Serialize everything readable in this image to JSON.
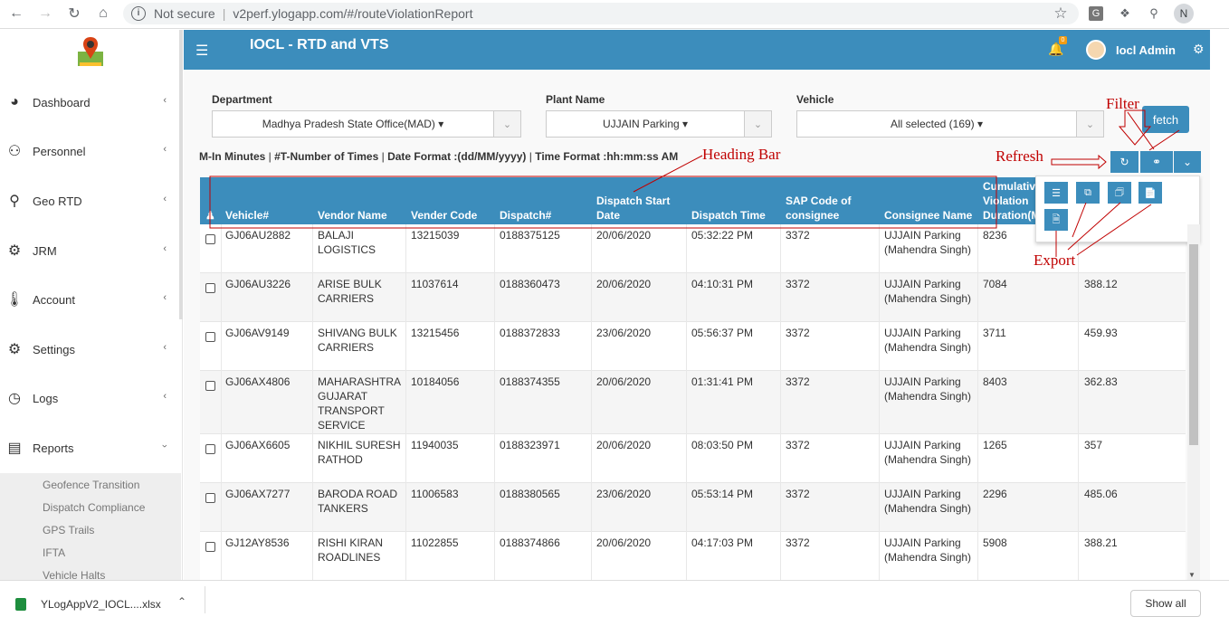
{
  "browser": {
    "security": "Not secure",
    "url": "v2perf.ylogapp.com/#/routeViolationReport",
    "profile_initial": "N"
  },
  "header": {
    "title": "IOCL - RTD and VTS",
    "notification_count": "0",
    "user_name": "Iocl Admin"
  },
  "sidebar": {
    "items": [
      {
        "label": "Dashboard",
        "icon": "dashboard-icon"
      },
      {
        "label": "Personnel",
        "icon": "users-icon"
      },
      {
        "label": "Geo RTD",
        "icon": "map-marker-icon"
      },
      {
        "label": "JRM",
        "icon": "gear-icon"
      },
      {
        "label": "Account",
        "icon": "thermometer-icon"
      },
      {
        "label": "Settings",
        "icon": "settings-icon"
      },
      {
        "label": "Logs",
        "icon": "clock-icon"
      },
      {
        "label": "Reports",
        "icon": "book-icon"
      }
    ],
    "sub_items": [
      "Geofence Transition",
      "Dispatch Compliance",
      "GPS Trails",
      "IFTA",
      "Vehicle Halts"
    ]
  },
  "filters": {
    "department_label": "Department",
    "department_value": "Madhya Pradesh State Office(MAD)",
    "plant_label": "Plant Name",
    "plant_value": "UJJAIN Parking",
    "vehicle_label": "Vehicle",
    "vehicle_value": "All selected (169)",
    "fetch_label": "fetch"
  },
  "legend": {
    "m": "M-In Minutes",
    "t": "#T-Number of Times",
    "date": "Date Format :(dd/MM/yyyy)",
    "time": "Time Format :hh:mm:ss AM"
  },
  "annotations": {
    "filter": "Filter",
    "refresh": "Refresh",
    "heading_bar": "Heading Bar",
    "export": "Export"
  },
  "table": {
    "columns": [
      "Vehicle#",
      "Vendor Name",
      "Vender Code",
      "Dispatch#",
      "Dispatch Start Date",
      "Dispatch Time",
      "SAP Code of consignee",
      "Consignee Name",
      "Cumulative Violation Duration(M)"
    ],
    "rows": [
      {
        "vehicle": "GJ06AU2882",
        "vendor": "BALAJI LOGISTICS",
        "code": "13215039",
        "dispatch": "0188375125",
        "date": "20/06/2020",
        "time": "05:32:22 PM",
        "sap": "3372",
        "consignee": "UJJAIN Parking (Mahendra Singh)",
        "cum": "8236",
        "extra": ""
      },
      {
        "vehicle": "GJ06AU3226",
        "vendor": "ARISE BULK CARRIERS",
        "code": "11037614",
        "dispatch": "0188360473",
        "date": "20/06/2020",
        "time": "04:10:31 PM",
        "sap": "3372",
        "consignee": "UJJAIN Parking (Mahendra Singh)",
        "cum": "7084",
        "extra": "388.12"
      },
      {
        "vehicle": "GJ06AV9149",
        "vendor": "SHIVANG BULK CARRIERS",
        "code": "13215456",
        "dispatch": "0188372833",
        "date": "23/06/2020",
        "time": "05:56:37 PM",
        "sap": "3372",
        "consignee": "UJJAIN Parking (Mahendra Singh)",
        "cum": "3711",
        "extra": "459.93"
      },
      {
        "vehicle": "GJ06AX4806",
        "vendor": "MAHARASHTRA GUJARAT TRANSPORT SERVICE",
        "code": "10184056",
        "dispatch": "0188374355",
        "date": "20/06/2020",
        "time": "01:31:41 PM",
        "sap": "3372",
        "consignee": "UJJAIN Parking (Mahendra Singh)",
        "cum": "8403",
        "extra": "362.83"
      },
      {
        "vehicle": "GJ06AX6605",
        "vendor": "NIKHIL SURESH RATHOD",
        "code": "11940035",
        "dispatch": "0188323971",
        "date": "20/06/2020",
        "time": "08:03:50 PM",
        "sap": "3372",
        "consignee": "UJJAIN Parking (Mahendra Singh)",
        "cum": "1265",
        "extra": "357"
      },
      {
        "vehicle": "GJ06AX7277",
        "vendor": "BARODA ROAD TANKERS",
        "code": "11006583",
        "dispatch": "0188380565",
        "date": "23/06/2020",
        "time": "05:53:14 PM",
        "sap": "3372",
        "consignee": "UJJAIN Parking (Mahendra Singh)",
        "cum": "2296",
        "extra": "485.06"
      },
      {
        "vehicle": "GJ12AY8536",
        "vendor": "RISHI KIRAN ROADLINES",
        "code": "11022855",
        "dispatch": "0188374866",
        "date": "20/06/2020",
        "time": "04:17:03 PM",
        "sap": "3372",
        "consignee": "UJJAIN Parking (Mahendra Singh)",
        "cum": "5908",
        "extra": "388.21"
      }
    ]
  },
  "download": {
    "file": "YLogAppV2_IOCL....xlsx",
    "show_all": "Show all"
  }
}
